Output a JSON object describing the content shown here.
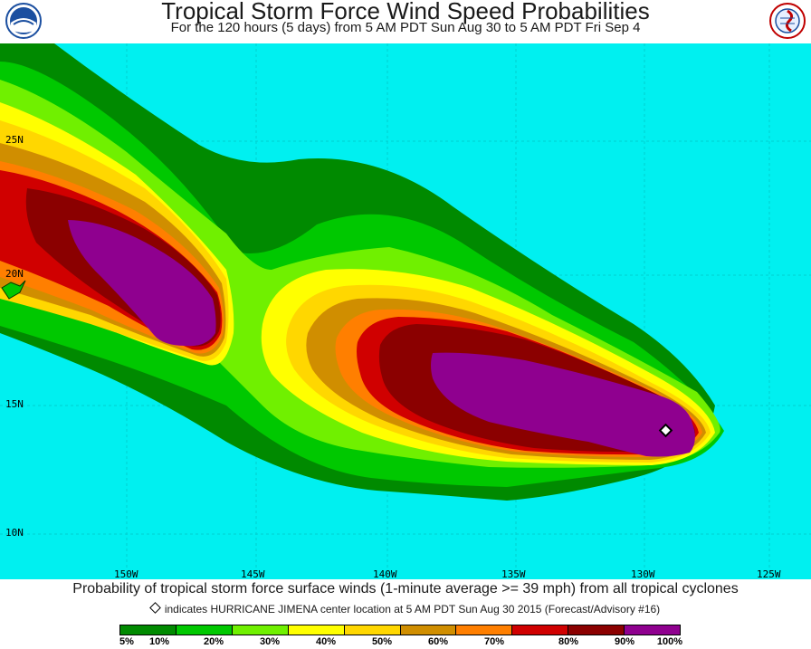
{
  "header": {
    "title": "Tropical Storm Force Wind Speed Probabilities",
    "subtitle": "For the 120 hours (5 days) from 5 AM PDT Sun Aug 30 to 5 AM PDT Fri Sep 4",
    "left_logo_text": "NOAA",
    "right_logo_text": "NATIONAL WEATHER SERVICE"
  },
  "map": {
    "ocean_color": "#00f0f0",
    "lat_labels": [
      "25N",
      "20N",
      "15N",
      "10N"
    ],
    "lon_labels": [
      "150W",
      "145W",
      "140W",
      "135W",
      "130W",
      "125W"
    ],
    "storm_marker": "HURRICANE JIMENA"
  },
  "footer": {
    "caption": "Probability of tropical storm force surface winds (1-minute average >= 39 mph) from all tropical cyclones",
    "note": "indicates HURRICANE JIMENA center location at 5 AM PDT Sun Aug 30 2015 (Forecast/Advisory #16)"
  },
  "legend": {
    "colors": [
      "#008a00",
      "#00c800",
      "#70f000",
      "#ffff00",
      "#ffd700",
      "#d08e00",
      "#ff7f00",
      "#d00000",
      "#8b0000",
      "#8f008f"
    ],
    "labels": [
      "5%",
      "10%",
      "20%",
      "30%",
      "40%",
      "50%",
      "60%",
      "70%",
      "80%",
      "90%",
      "100%"
    ]
  }
}
